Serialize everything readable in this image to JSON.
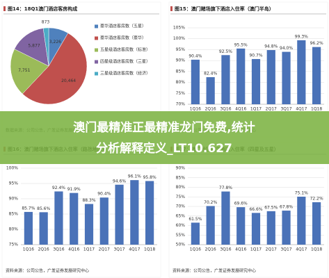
{
  "chart_data": [
    {
      "type": "pie",
      "title": "图14：18Q1澳门酒店客房构成",
      "categories": [
        "豪华酒店客房数（五星）",
        "豪华酒店客房数（豪华）",
        "五星级酒店客房数（标准）",
        "四星级酒店客房数（三星）",
        "三星级酒店客房数（经济）"
      ],
      "values": [
        3226,
        20464,
        7751,
        5877,
        873
      ],
      "value_labels": [
        "3,226",
        "20,464",
        "7,751",
        "5,877",
        "873"
      ],
      "colors": [
        "#4f81bd",
        "#c0504d",
        "#9bbb59",
        "#8064a2",
        "#4bacc6"
      ],
      "source": "数据来源：公司公告，广发证券发展研究中心"
    },
    {
      "type": "bar",
      "title": "图15：澳门赌场旗下酒店入住率（澳门半岛）",
      "categories": [
        "1Q16",
        "2Q16",
        "3Q16",
        "4Q16",
        "1Q17",
        "2Q17",
        "3Q17",
        "4Q17",
        "1Q18"
      ],
      "values": [
        90.4,
        82.4,
        92.5,
        95.5,
        90.7,
        94.8,
        94.0,
        99.3,
        96.2
      ],
      "value_labels": [
        "90.4%",
        "82.4%",
        "92.5%",
        "95.5%",
        "90.7%",
        "94.8%",
        "94.0%",
        "99.3%",
        "96.2%"
      ],
      "color": "#4a72b8",
      "ylim": [
        70,
        105
      ],
      "yticks": [
        {
          "value": 70,
          "label": "70%"
        },
        {
          "value": 75,
          "label": "75%"
        },
        {
          "value": 80,
          "label": "80%"
        },
        {
          "value": 85,
          "label": "85%"
        },
        {
          "value": 90,
          "label": "90%"
        },
        {
          "value": 95,
          "label": "95%"
        },
        {
          "value": 100,
          "label": "100%"
        },
        {
          "value": 105,
          "label": "105%"
        }
      ],
      "grid": true,
      "source": "资料来源：公司公告，广发证券发展研究中心"
    },
    {
      "type": "bar",
      "title": "图16：澳门赌场旗下酒店入住率（路氹地区）",
      "categories": [
        "1Q16",
        "2Q16",
        "3Q16",
        "4Q16",
        "1Q17",
        "2Q17",
        "3Q17",
        "4Q17",
        "1Q18"
      ],
      "values": [
        85.7,
        85.6,
        92.4,
        91.9,
        88.3,
        90.4,
        94.6,
        96.1,
        95.8
      ],
      "value_labels": [
        "85.7%",
        "85.6%",
        "92.4%",
        "91.9%",
        "88.3%",
        "90.4%",
        "94.6%",
        "96.1%",
        "95.8%"
      ],
      "color": "#4a72b8",
      "ylim": [
        75,
        100
      ],
      "yticks": [
        {
          "value": 75,
          "label": "75%"
        },
        {
          "value": 80,
          "label": "80%"
        },
        {
          "value": 85,
          "label": "85%"
        },
        {
          "value": 90,
          "label": "90%"
        },
        {
          "value": 95,
          "label": "95%"
        },
        {
          "value": 100,
          "label": "100%"
        }
      ],
      "grid": true,
      "source": "资料来源：公司公告，广发证券发展研究中心"
    },
    {
      "type": "bar",
      "title": "图17：澳门地区独立酒店入住率（四星及五星）",
      "categories": [
        "1Q16",
        "2Q16",
        "3Q16",
        "4Q16",
        "1Q17",
        "2Q17",
        "3Q17",
        "4Q17",
        "1Q18"
      ],
      "values": [
        61.5,
        70.2,
        77.8,
        69.6,
        66.6,
        67.5,
        67.8,
        75.1,
        72.2
      ],
      "value_labels": [
        "61.5%",
        "70.2%",
        "77.8%",
        "69.6%",
        "66.6%",
        "67.5%",
        "67.8%",
        "75.1%",
        "72.2%"
      ],
      "color": "#4a72b8",
      "ylim": [
        50,
        90
      ],
      "yticks": [
        {
          "value": 50,
          "label": "50%"
        },
        {
          "value": 55,
          "label": "55%"
        },
        {
          "value": 60,
          "label": "60%"
        },
        {
          "value": 65,
          "label": "65%"
        },
        {
          "value": 70,
          "label": "70%"
        },
        {
          "value": 75,
          "label": "75%"
        },
        {
          "value": 80,
          "label": "80%"
        },
        {
          "value": 85,
          "label": "85%"
        },
        {
          "value": 90,
          "label": "90%"
        }
      ],
      "grid": true,
      "source": "资料来源：公司公告，广发证券发展研究中心"
    }
  ],
  "banner": {
    "lines": [
      "澳门最精准正最精准龙门免费,统计",
      "分析解释定义_LT10.627"
    ]
  }
}
